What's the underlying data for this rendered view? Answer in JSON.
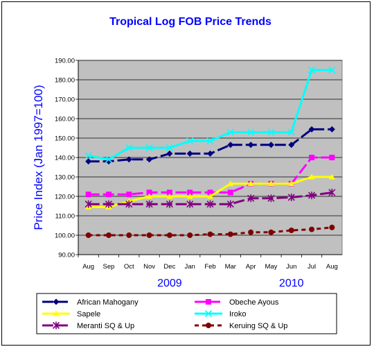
{
  "chart_data": {
    "type": "line",
    "title": "Tropical Log FOB Price Trends",
    "ylabel": "Price Index (Jan 1997=100)",
    "xlabel": "",
    "categories": [
      "Aug",
      "Sep",
      "Oct",
      "Nov",
      "Dec",
      "Jan",
      "Feb",
      "Mar",
      "Apr",
      "May",
      "Jun",
      "Jul",
      "Aug"
    ],
    "year_labels": [
      {
        "text": "2009",
        "under_category_index": 4
      },
      {
        "text": "2010",
        "under_category_index": 10
      }
    ],
    "ylim": [
      90,
      190
    ],
    "ytick_step": 10,
    "ytick_format": "2dp",
    "grid": "horizontal",
    "plot_background": "#c0c0c0",
    "legend_placement": "bottom",
    "series": [
      {
        "name": "African Mahogany",
        "color": "#000080",
        "marker": "diamond",
        "dash": "long",
        "values": [
          138,
          138,
          139,
          139,
          142,
          142,
          142,
          146.5,
          146.5,
          146.5,
          146.5,
          154.5,
          154.5
        ]
      },
      {
        "name": "Obeche Ayous",
        "color": "#ff00ff",
        "marker": "square",
        "dash": "long",
        "values": [
          121,
          121,
          121,
          122,
          122,
          122,
          122,
          122,
          126.5,
          126.5,
          126.5,
          140,
          140
        ]
      },
      {
        "name": "Sapele",
        "color": "#ffff00",
        "marker": "triangle",
        "dash": "solid",
        "values": [
          114.5,
          114.5,
          117.5,
          120,
          120,
          120,
          120,
          126.5,
          126.5,
          126.5,
          126.5,
          130,
          130
        ]
      },
      {
        "name": "Iroko",
        "color": "#00ffff",
        "marker": "x",
        "dash": "solid",
        "values": [
          141,
          139,
          145,
          145,
          145,
          148.5,
          148.5,
          153,
          153,
          153,
          153,
          185,
          185
        ]
      },
      {
        "name": "Meranti SQ & Up",
        "color": "#800080",
        "marker": "star",
        "dash": "long",
        "values": [
          116,
          116,
          116,
          116,
          116,
          116,
          116,
          116,
          119,
          119,
          119.5,
          120.5,
          122
        ]
      },
      {
        "name": "Keruing SQ & Up",
        "color": "#800000",
        "marker": "circle",
        "dash": "dot",
        "values": [
          100,
          100,
          100,
          100,
          100,
          100,
          100.5,
          100.5,
          101.5,
          101.5,
          102.5,
          103,
          104
        ]
      }
    ]
  }
}
